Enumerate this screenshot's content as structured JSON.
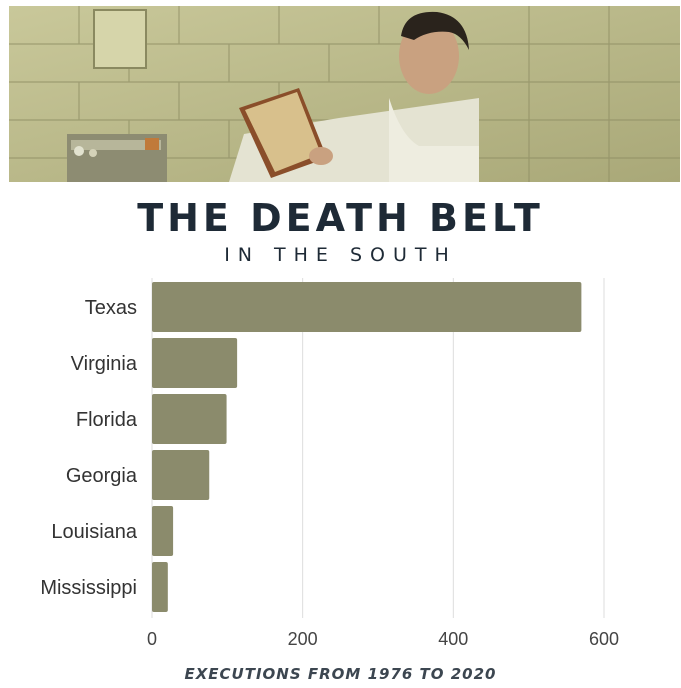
{
  "header": {
    "title": "THE DEATH BELT",
    "subtitle": "IN THE SOUTH"
  },
  "colors": {
    "bar": "#8b8b6c",
    "grid": "#dddddd",
    "text": "#1e2a36"
  },
  "chart_data": {
    "type": "bar",
    "orientation": "horizontal",
    "title": "THE DEATH BELT",
    "subtitle": "IN THE SOUTH",
    "xlabel": "EXECUTIONS FROM 1976 TO 2020",
    "ylabel": "",
    "categories": [
      "Texas",
      "Virginia",
      "Florida",
      "Georgia",
      "Louisiana",
      "Mississippi"
    ],
    "values": [
      570,
      113,
      99,
      76,
      28,
      21
    ],
    "xlim": [
      0,
      640
    ],
    "xticks": [
      0,
      200,
      400,
      600
    ],
    "grid": true,
    "legend": "none"
  }
}
